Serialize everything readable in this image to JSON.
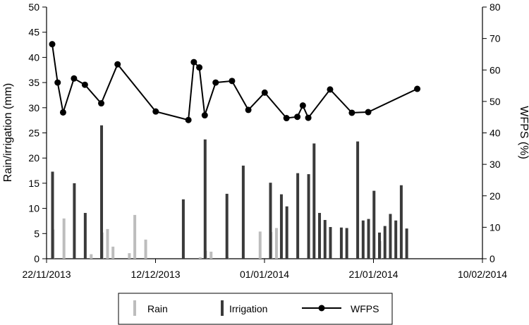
{
  "chart_data": {
    "type": "bar+line",
    "x_axis": {
      "ticks": [
        "22/11/2013",
        "12/12/2013",
        "01/01/2014",
        "21/01/2014",
        "10/02/2014"
      ],
      "range": [
        "2013-11-22",
        "2014-02-10"
      ]
    },
    "y_left": {
      "label": "Rain/irrigation (mm)",
      "ylim": [
        0,
        50
      ],
      "ticks": [
        "0",
        "5",
        "10",
        "15",
        "20",
        "25",
        "30",
        "35",
        "40",
        "45",
        "50"
      ]
    },
    "y_right": {
      "label": "WFPS (%)",
      "ylim": [
        0,
        80
      ],
      "ticks": [
        "0",
        "10",
        "20",
        "30",
        "40",
        "50",
        "60",
        "70",
        "80"
      ]
    },
    "legend": {
      "position": "bottom",
      "entries": [
        "Rain",
        "Irrigation",
        "WFPS"
      ]
    },
    "colors": {
      "rain": "#bdbdbd",
      "irrigation": "#3a3a3a",
      "wfps": "#000000"
    },
    "rain": [
      {
        "date": "2013-11-23",
        "value": 5.8
      },
      {
        "date": "2013-11-25",
        "value": 8.0
      },
      {
        "date": "2013-11-30",
        "value": 0.9
      },
      {
        "date": "2013-12-02",
        "value": 5.2
      },
      {
        "date": "2013-12-03",
        "value": 5.9
      },
      {
        "date": "2013-12-04",
        "value": 2.4
      },
      {
        "date": "2013-12-07",
        "value": 1.1
      },
      {
        "date": "2013-12-08",
        "value": 8.7
      },
      {
        "date": "2013-12-10",
        "value": 3.8
      },
      {
        "date": "2013-12-20",
        "value": 0.3
      },
      {
        "date": "2013-12-21",
        "value": 1.6
      },
      {
        "date": "2013-12-22",
        "value": 1.4
      },
      {
        "date": "2013-12-25",
        "value": 0.3
      },
      {
        "date": "2013-12-31",
        "value": 5.4
      },
      {
        "date": "2014-01-02",
        "value": 5.3
      },
      {
        "date": "2014-01-03",
        "value": 6.1
      },
      {
        "date": "2014-01-22",
        "value": 3.5
      }
    ],
    "irrigation": [
      {
        "date": "2013-11-22",
        "value": 17.3
      },
      {
        "date": "2013-11-26",
        "value": 15.0
      },
      {
        "date": "2013-11-28",
        "value": 9.1
      },
      {
        "date": "2013-12-01",
        "value": 26.5
      },
      {
        "date": "2013-12-16",
        "value": 11.8
      },
      {
        "date": "2013-12-20",
        "value": 23.7
      },
      {
        "date": "2013-12-24",
        "value": 12.9
      },
      {
        "date": "2013-12-27",
        "value": 18.5
      },
      {
        "date": "2014-01-01",
        "value": 15.1
      },
      {
        "date": "2014-01-03",
        "value": 12.8
      },
      {
        "date": "2014-01-04",
        "value": 10.4
      },
      {
        "date": "2014-01-06",
        "value": 17.0
      },
      {
        "date": "2014-01-08",
        "value": 16.8
      },
      {
        "date": "2014-01-09",
        "value": 22.9
      },
      {
        "date": "2014-01-10",
        "value": 9.1
      },
      {
        "date": "2014-01-11",
        "value": 7.7
      },
      {
        "date": "2014-01-12",
        "value": 6.3
      },
      {
        "date": "2014-01-14",
        "value": 6.2
      },
      {
        "date": "2014-01-15",
        "value": 6.1
      },
      {
        "date": "2014-01-17",
        "value": 23.3
      },
      {
        "date": "2014-01-18",
        "value": 7.6
      },
      {
        "date": "2014-01-19",
        "value": 7.9
      },
      {
        "date": "2014-01-20",
        "value": 13.5
      },
      {
        "date": "2014-01-21",
        "value": 5.2
      },
      {
        "date": "2014-01-22",
        "value": 6.5
      },
      {
        "date": "2014-01-23",
        "value": 8.9
      },
      {
        "date": "2014-01-24",
        "value": 7.6
      },
      {
        "date": "2014-01-25",
        "value": 14.6
      },
      {
        "date": "2014-01-26",
        "value": 6.0
      }
    ],
    "wfps": [
      {
        "date": "2013-11-22",
        "value": 68.2
      },
      {
        "date": "2013-11-23",
        "value": 56.0
      },
      {
        "date": "2013-11-24",
        "value": 46.5
      },
      {
        "date": "2013-11-26",
        "value": 57.3
      },
      {
        "date": "2013-11-28",
        "value": 55.3
      },
      {
        "date": "2013-12-01",
        "value": 49.4
      },
      {
        "date": "2013-12-04",
        "value": 61.8
      },
      {
        "date": "2013-12-11",
        "value": 46.8
      },
      {
        "date": "2013-12-17",
        "value": 44.1
      },
      {
        "date": "2013-12-18",
        "value": 62.5
      },
      {
        "date": "2013-12-19",
        "value": 60.8
      },
      {
        "date": "2013-12-20",
        "value": 45.6
      },
      {
        "date": "2013-12-22",
        "value": 56.0
      },
      {
        "date": "2013-12-25",
        "value": 56.5
      },
      {
        "date": "2013-12-28",
        "value": 47.3
      },
      {
        "date": "2013-12-31",
        "value": 52.8
      },
      {
        "date": "2014-01-04",
        "value": 44.7
      },
      {
        "date": "2014-01-06",
        "value": 45.1
      },
      {
        "date": "2014-01-07",
        "value": 48.7
      },
      {
        "date": "2014-01-08",
        "value": 44.8
      },
      {
        "date": "2014-01-12",
        "value": 53.8
      },
      {
        "date": "2014-01-16",
        "value": 46.4
      },
      {
        "date": "2014-01-19",
        "value": 46.6
      },
      {
        "date": "2014-01-28",
        "value": 54.0
      }
    ]
  }
}
